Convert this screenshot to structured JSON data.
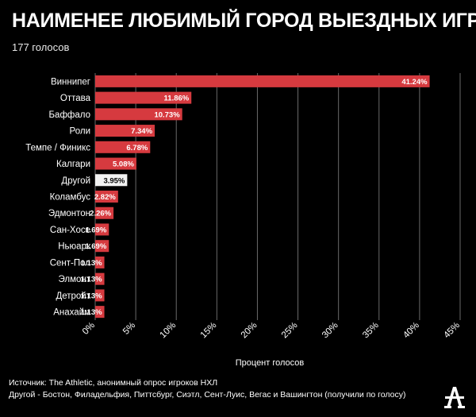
{
  "header": {
    "title": "НАИМЕНЕЕ ЛЮБИМЫЙ ГОРОД ВЫЕЗДНЫХ ИГР",
    "subtitle": "177 голосов"
  },
  "footer": {
    "source": "Источник: The Athletic, анонимный опрос игроков НХЛ",
    "note": "Другой - Бостон, Филадельфия, Питтсбург, Сиэтл, Сент-Луис, Вегас и Вашингтон (получили по голосу)"
  },
  "logo": {
    "icon": "athletic-logo-icon"
  },
  "colors": {
    "bar": "#d63a3f",
    "other_bar": "#f2f2f2",
    "background": "#000000"
  },
  "chart_data": {
    "type": "bar",
    "orientation": "horizontal",
    "categories": [
      "Виннипег",
      "Оттава",
      "Баффало",
      "Роли",
      "Темпе / Финикс",
      "Калгари",
      "Другой",
      "Коламбус",
      "Эдмонтон",
      "Сан-Хосе",
      "Ньюарк",
      "Сент-Пол",
      "Элмонт",
      "Детройт",
      "Анахайм"
    ],
    "values": [
      41.24,
      11.86,
      10.73,
      7.34,
      6.78,
      5.08,
      3.95,
      2.82,
      2.26,
      1.69,
      1.69,
      1.13,
      1.13,
      1.13,
      1.13
    ],
    "data_labels": [
      "41.24%",
      "11.86%",
      "10.73%",
      "7.34%",
      "6.78%",
      "5.08%",
      "3.95%",
      "2.82%",
      "2.26%",
      "1.69%",
      "1.69%",
      "1.13%",
      "1.13%",
      "1.13%",
      "1.13%"
    ],
    "highlight_category": "Другой",
    "xlabel": "Процент голосов",
    "xlim": [
      0,
      45
    ],
    "x_ticks": [
      0,
      5,
      10,
      15,
      20,
      25,
      30,
      35,
      40,
      45
    ],
    "x_tick_labels": [
      "0%",
      "5%",
      "10%",
      "15%",
      "20%",
      "25%",
      "30%",
      "35%",
      "40%",
      "45%"
    ],
    "grid": true
  }
}
